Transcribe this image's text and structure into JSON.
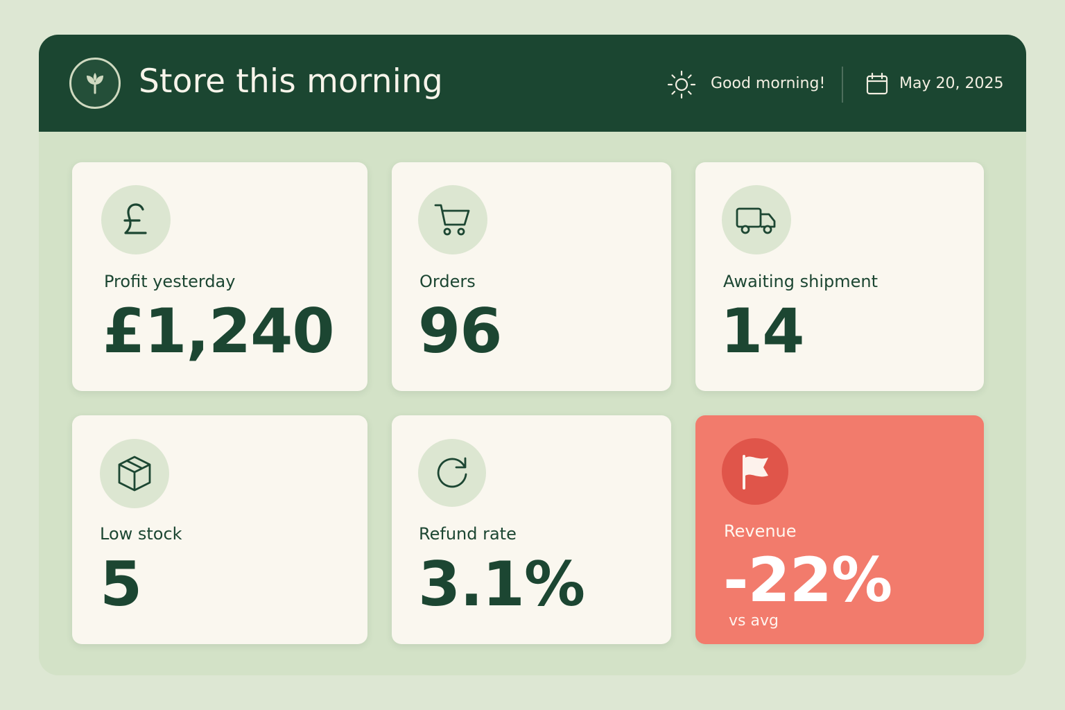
{
  "header": {
    "title": "Store this morning",
    "greeting": "Good morning!",
    "date": "May 20, 2025",
    "logo_icon": "sprout-icon",
    "greeting_icon": "sun-icon",
    "date_icon": "calendar-icon"
  },
  "cards": [
    {
      "label": "Profit yesterday",
      "value": "£1,240",
      "icon": "pound-icon"
    },
    {
      "label": "Orders",
      "value": "96",
      "icon": "cart-icon"
    },
    {
      "label": "Awaiting shipment",
      "value": "14",
      "icon": "truck-icon"
    },
    {
      "label": "Low stock",
      "value": "5",
      "icon": "box-icon"
    },
    {
      "label": "Refund rate",
      "value": "3.1%",
      "icon": "refresh-icon"
    },
    {
      "label": "Revenue",
      "value": "-22%",
      "sub": "vs avg",
      "icon": "flag-icon",
      "status": "alert"
    }
  ],
  "colors": {
    "header_bg": "#1b4631",
    "panel_bg": "#d3e2c7",
    "card_bg": "#faf7ef",
    "alert_bg": "#f27b6c",
    "text_dark": "#1c4632"
  }
}
